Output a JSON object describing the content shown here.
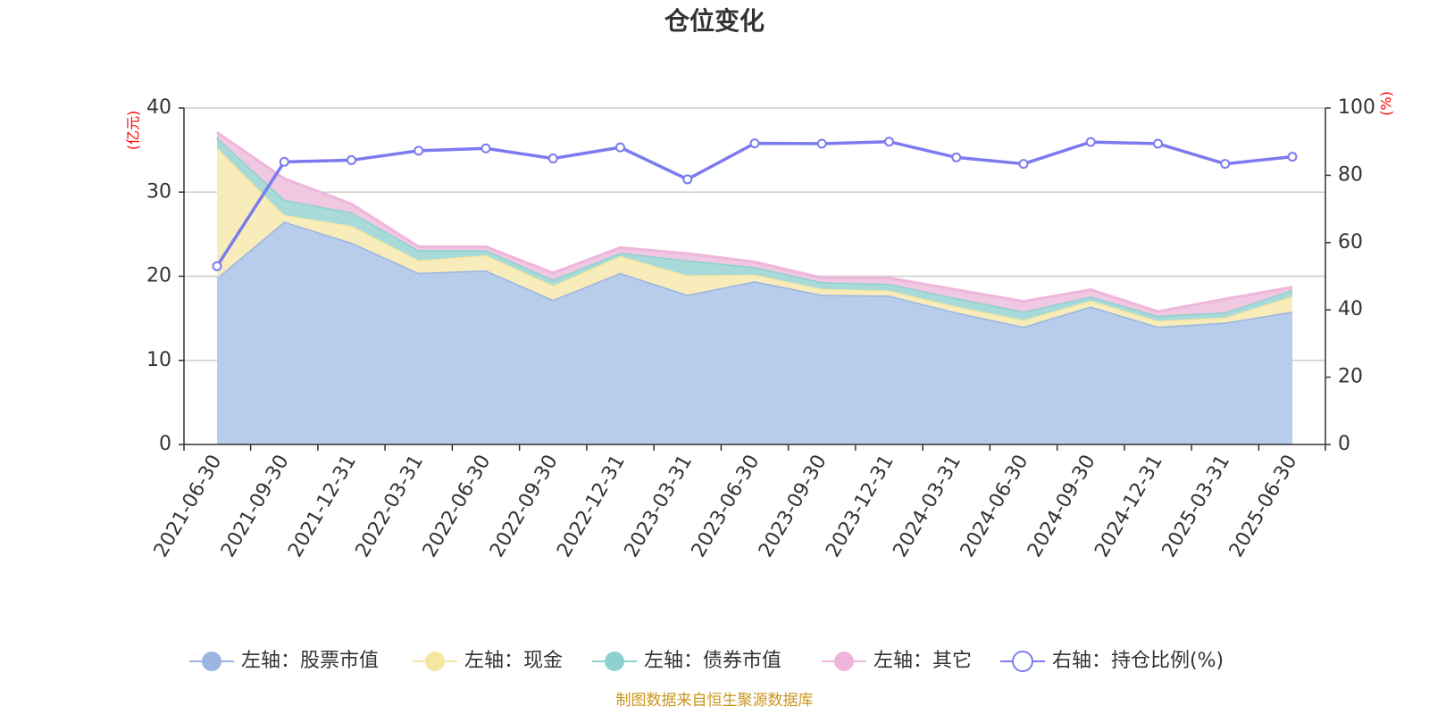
{
  "chart_data": {
    "type": "area",
    "title": "仓位变化",
    "y_left_unit": "(亿元)",
    "y_right_unit": "(%)",
    "y_left_range": [
      0,
      40
    ],
    "y_left_ticks": [
      "0",
      "10",
      "20",
      "30",
      "40"
    ],
    "y_right_range": [
      0,
      100
    ],
    "y_right_ticks": [
      "0",
      "20",
      "40",
      "60",
      "80",
      "100"
    ],
    "grid": true,
    "legend_position": "bottom",
    "categories": [
      "2021-06-30",
      "2021-09-30",
      "2021-12-31",
      "2022-03-31",
      "2022-06-30",
      "2022-09-30",
      "2022-12-31",
      "2023-03-31",
      "2023-06-30",
      "2023-09-30",
      "2023-12-31",
      "2024-03-31",
      "2024-06-30",
      "2024-09-30",
      "2024-12-31",
      "2025-03-31",
      "2025-06-30"
    ],
    "series": [
      {
        "name": "左轴：股票市值",
        "axis": "left",
        "kind": "stacked-area",
        "color": "#9bb5e0",
        "fill": "#b8cceb",
        "values": [
          19.8,
          26.5,
          24.0,
          20.4,
          20.7,
          17.2,
          20.4,
          17.8,
          19.4,
          17.8,
          17.7,
          15.7,
          14.0,
          16.4,
          14.0,
          14.5,
          15.8
        ]
      },
      {
        "name": "左轴：现金",
        "axis": "left",
        "kind": "stacked-area",
        "color": "#f5e6a0",
        "fill": "#f8ecbb",
        "values": [
          15.5,
          0.8,
          2.0,
          1.5,
          1.8,
          1.7,
          2.0,
          2.3,
          0.8,
          0.7,
          0.6,
          0.7,
          0.8,
          0.7,
          0.7,
          0.6,
          1.8
        ]
      },
      {
        "name": "左轴：债券市值",
        "axis": "left",
        "kind": "stacked-area",
        "color": "#8fd1d0",
        "fill": "#a7dad9",
        "values": [
          1.2,
          1.8,
          1.6,
          1.2,
          0.6,
          0.7,
          0.4,
          1.8,
          0.9,
          0.8,
          0.8,
          1.0,
          1.0,
          0.5,
          0.6,
          0.6,
          0.8
        ]
      },
      {
        "name": "左轴：其它",
        "axis": "left",
        "kind": "stacked-area",
        "color": "#f0b5dc",
        "fill": "#f0c8e1",
        "values": [
          0.6,
          2.5,
          1.0,
          0.4,
          0.4,
          0.8,
          0.6,
          0.8,
          0.6,
          0.5,
          0.7,
          1.0,
          1.2,
          0.8,
          0.5,
          1.6,
          0.3
        ]
      },
      {
        "name": "右轴：持仓比例(%)",
        "axis": "right",
        "kind": "line",
        "color": "#7b7bef",
        "values": [
          53.0,
          84.0,
          84.5,
          87.3,
          88.0,
          85.0,
          88.3,
          78.8,
          89.5,
          89.4,
          90.0,
          85.3,
          83.4,
          89.9,
          89.4,
          83.4,
          85.5
        ]
      }
    ]
  },
  "source_text": "制图数据来自恒生聚源数据库"
}
